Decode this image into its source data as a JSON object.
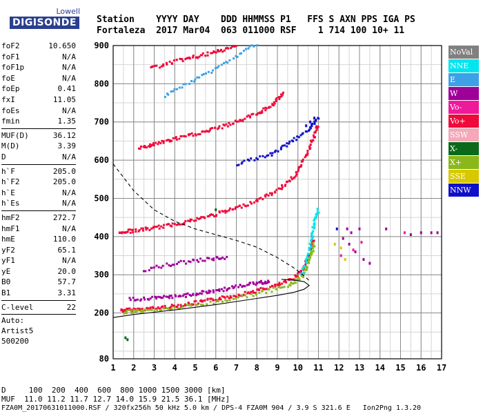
{
  "logo": {
    "top": "Lowell",
    "main": "DIGISONDE"
  },
  "header": {
    "line1": "Station    YYYY DAY    DDD HHMMSS P1   FFS S AXN PPS IGA PS",
    "line2": "Fortaleza  2017 Mar04  063 011000 RSF    1 714 100 10+ 11"
  },
  "params": [
    [
      {
        "label": "foF2",
        "value": "10.650"
      },
      {
        "label": "foF1",
        "value": "N/A"
      },
      {
        "label": "foF1p",
        "value": "N/A"
      },
      {
        "label": "foE",
        "value": "N/A"
      },
      {
        "label": "foEp",
        "value": "0.41"
      },
      {
        "label": "fxI",
        "value": "11.05"
      },
      {
        "label": "foEs",
        "value": "N/A"
      },
      {
        "label": "fmin",
        "value": "1.35"
      }
    ],
    [
      {
        "label": "MUF(D)",
        "value": "36.12"
      },
      {
        "label": "M(D)",
        "value": "3.39"
      },
      {
        "label": "D",
        "value": "N/A"
      }
    ],
    [
      {
        "label": "h`F",
        "value": "205.0"
      },
      {
        "label": "h`F2",
        "value": "205.0"
      },
      {
        "label": "h`E",
        "value": "N/A"
      },
      {
        "label": "h`Es",
        "value": "N/A"
      }
    ],
    [
      {
        "label": "hmF2",
        "value": "272.7"
      },
      {
        "label": "hmF1",
        "value": "N/A"
      },
      {
        "label": "hmE",
        "value": "110.0"
      },
      {
        "label": "yF2",
        "value": "65.1"
      },
      {
        "label": "yF1",
        "value": "N/A"
      },
      {
        "label": "yE",
        "value": "20.0"
      },
      {
        "label": "B0",
        "value": "57.7"
      },
      {
        "label": "B1",
        "value": "3.31"
      }
    ],
    [
      {
        "label": "C-level",
        "value": "22"
      }
    ]
  ],
  "auto": [
    "Auto:",
    "Artist5",
    "500200"
  ],
  "legend": [
    {
      "label": "NoVal",
      "color": "#808080"
    },
    {
      "label": "NNE",
      "color": "#00e5ee"
    },
    {
      "label": "E",
      "color": "#3ea0e6"
    },
    {
      "label": "W",
      "color": "#a0009a"
    },
    {
      "label": "Vo-",
      "color": "#ee1a9a"
    },
    {
      "label": "Vo+",
      "color": "#ee0a3a"
    },
    {
      "label": "SSW",
      "color": "#f4a8b8"
    },
    {
      "label": "X-",
      "color": "#0a6a1a"
    },
    {
      "label": "X+",
      "color": "#8ab818"
    },
    {
      "label": "SSE",
      "color": "#d8c800"
    },
    {
      "label": "NNW",
      "color": "#1010c8"
    }
  ],
  "bottom": {
    "line1": "D     100  200  400  600  800 1000 1500 3000 [km]",
    "line2": "MUF  11.0 11.2 11.7 12.7 14.0 15.9 21.5 36.1 [MHz]",
    "line3": "FZA0M_20170631011000.RSF / 320fx256h 50 kHz 5.0 km / DPS-4 FZA0M 904 / 3.9 S 321.6 E   Ion2Png 1.3.20"
  },
  "chart_data": {
    "type": "scatter",
    "xlim": [
      1,
      17
    ],
    "ylim": [
      80,
      900
    ],
    "xticks": [
      1,
      2,
      3,
      4,
      5,
      6,
      7,
      8,
      9,
      10,
      11,
      12,
      13,
      14,
      15,
      16,
      17
    ],
    "yticks": [
      80,
      200,
      300,
      400,
      500,
      600,
      700,
      800,
      900
    ],
    "x_minor_step": 0.5,
    "y_minor_step": 50,
    "grid": true,
    "traces": [
      {
        "color": "#ee0a3a",
        "points": [
          [
            1.4,
            207
          ],
          [
            2,
            208
          ],
          [
            3,
            212
          ],
          [
            4,
            218
          ],
          [
            5,
            226
          ],
          [
            6,
            236
          ],
          [
            7,
            246
          ],
          [
            8,
            258
          ],
          [
            9,
            272
          ],
          [
            9.8,
            290
          ],
          [
            10.3,
            318
          ],
          [
            10.6,
            358
          ],
          [
            10.75,
            395
          ]
        ]
      },
      {
        "color": "#8ab818",
        "points": [
          [
            1.5,
            203
          ],
          [
            2.5,
            205
          ],
          [
            4,
            212
          ],
          [
            6,
            228
          ],
          [
            8,
            250
          ],
          [
            9.5,
            270
          ],
          [
            10.2,
            295
          ],
          [
            10.6,
            340
          ],
          [
            10.8,
            380
          ]
        ]
      },
      {
        "color": "#ee0a3a",
        "points": [
          [
            1.3,
            412
          ],
          [
            2,
            415
          ],
          [
            3,
            422
          ],
          [
            4,
            432
          ],
          [
            5,
            444
          ],
          [
            6,
            458
          ],
          [
            7,
            474
          ],
          [
            8,
            494
          ],
          [
            9,
            520
          ],
          [
            9.8,
            556
          ],
          [
            10.3,
            600
          ],
          [
            10.7,
            650
          ],
          [
            10.95,
            690
          ]
        ]
      },
      {
        "color": "#ee0a3a",
        "points": [
          [
            2.3,
            630
          ],
          [
            3,
            642
          ],
          [
            4,
            655
          ],
          [
            5,
            668
          ],
          [
            6,
            682
          ],
          [
            7,
            700
          ],
          [
            8,
            722
          ],
          [
            8.8,
            745
          ],
          [
            9.3,
            775
          ]
        ]
      },
      {
        "color": "#ee0a3a",
        "points": [
          [
            2.8,
            840
          ],
          [
            4,
            858
          ],
          [
            5,
            870
          ],
          [
            6,
            882
          ],
          [
            7,
            898
          ]
        ]
      },
      {
        "color": "#3ea0e6",
        "points": [
          [
            3.5,
            770
          ],
          [
            5,
            810
          ],
          [
            6.5,
            855
          ],
          [
            8,
            905
          ]
        ]
      },
      {
        "color": "#a0009a",
        "points": [
          [
            1.8,
            235
          ],
          [
            3,
            238
          ],
          [
            4,
            242
          ],
          [
            5,
            250
          ],
          [
            6,
            258
          ],
          [
            7,
            268
          ],
          [
            8,
            278
          ],
          [
            8.6,
            283
          ]
        ]
      },
      {
        "color": "#a0009a",
        "points": [
          [
            2.5,
            312
          ],
          [
            4,
            330
          ],
          [
            5.5,
            340
          ],
          [
            6.5,
            345
          ]
        ]
      },
      {
        "color": "#1010c8",
        "points": [
          [
            7,
            590
          ],
          [
            8.5,
            610
          ],
          [
            9.5,
            640
          ],
          [
            10.5,
            680
          ],
          [
            11,
            710
          ]
        ]
      },
      {
        "color": "#00e5ee",
        "points": [
          [
            10.2,
            300
          ],
          [
            10.5,
            350
          ],
          [
            10.7,
            400
          ],
          [
            10.8,
            440
          ],
          [
            11,
            470
          ]
        ]
      }
    ],
    "scatter": [
      {
        "color": "#a0009a",
        "points": [
          [
            12.2,
            395
          ],
          [
            12.5,
            380
          ],
          [
            12.8,
            360
          ],
          [
            13.2,
            340
          ],
          [
            12.4,
            420
          ],
          [
            13,
            420
          ],
          [
            12.6,
            410
          ],
          [
            14.3,
            420
          ],
          [
            15.5,
            405
          ],
          [
            16,
            410
          ],
          [
            16.5,
            410
          ],
          [
            16.8,
            410
          ],
          [
            13.5,
            330
          ]
        ]
      },
      {
        "color": "#ee1a9a",
        "points": [
          [
            12.1,
            350
          ],
          [
            12.7,
            365
          ],
          [
            13.1,
            385
          ],
          [
            15.2,
            410
          ]
        ]
      },
      {
        "color": "#1010c8",
        "points": [
          [
            11.9,
            420
          ],
          [
            10.6,
            700
          ],
          [
            10.8,
            710
          ],
          [
            10.4,
            690
          ]
        ]
      },
      {
        "color": "#d8c800",
        "points": [
          [
            12.3,
            340
          ],
          [
            12.1,
            370
          ],
          [
            11.8,
            380
          ]
        ]
      },
      {
        "color": "#0a6a1a",
        "points": [
          [
            1.6,
            135
          ],
          [
            1.7,
            130
          ],
          [
            6,
            470
          ]
        ]
      }
    ],
    "model_lines": [
      {
        "style": "dashed",
        "points": [
          [
            1,
            590
          ],
          [
            2,
            520
          ],
          [
            3,
            470
          ],
          [
            4,
            440
          ],
          [
            5,
            420
          ],
          [
            6,
            405
          ],
          [
            7,
            390
          ],
          [
            8,
            372
          ],
          [
            9,
            345
          ],
          [
            9.8,
            318
          ],
          [
            10.3,
            297
          ],
          [
            10.55,
            285
          ]
        ]
      },
      {
        "style": "solid",
        "points": [
          [
            1,
            188
          ],
          [
            2,
            196
          ],
          [
            3,
            202
          ],
          [
            4,
            208
          ],
          [
            5,
            215
          ],
          [
            6,
            222
          ],
          [
            7,
            230
          ],
          [
            8,
            238
          ],
          [
            9,
            246
          ],
          [
            9.8,
            254
          ],
          [
            10.3,
            262
          ],
          [
            10.55,
            272
          ],
          [
            10.3,
            282
          ],
          [
            9.8,
            286
          ],
          [
            9.2,
            288
          ]
        ]
      }
    ]
  }
}
